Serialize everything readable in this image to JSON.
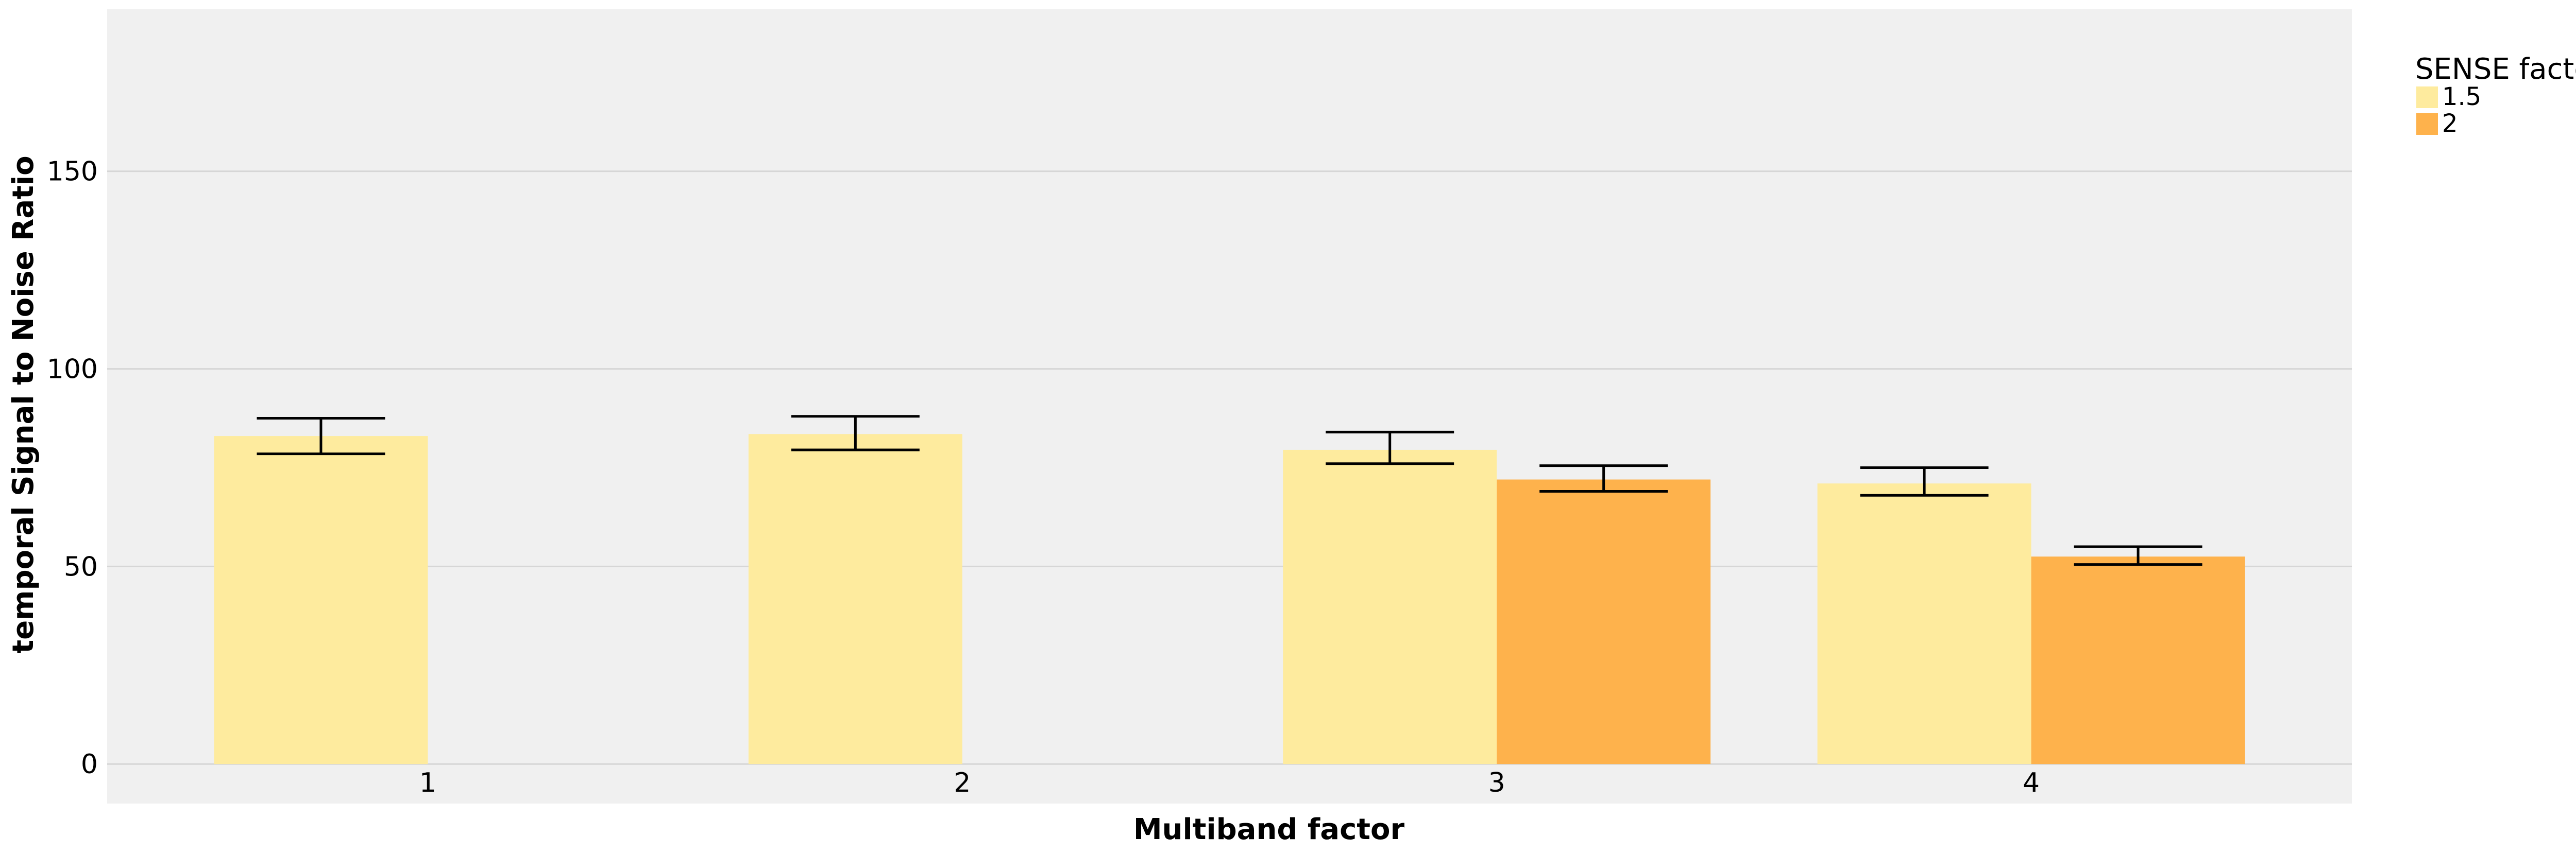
{
  "chart_data": {
    "type": "bar",
    "title": "",
    "xlabel": "Multiband factor",
    "ylabel": "temporal Signal to Noise Ratio",
    "categories": [
      "1",
      "2",
      "3",
      "4"
    ],
    "ylim": [
      -10,
      191
    ],
    "yticks": [
      0,
      50,
      100,
      150
    ],
    "grid": true,
    "legend": {
      "title": "SENSE factor",
      "position": "top-right outside"
    },
    "series": [
      {
        "name": "1.5",
        "color": "#FEEB9E",
        "values": [
          83,
          83.5,
          79.5,
          71
        ],
        "err_low": [
          78.5,
          79.5,
          76,
          68
        ],
        "err_high": [
          87.5,
          88,
          84,
          75
        ]
      },
      {
        "name": "2",
        "color": "#FEB24C",
        "values": [
          null,
          null,
          72,
          52.5
        ],
        "err_low": [
          null,
          null,
          69,
          50.5
        ],
        "err_high": [
          null,
          null,
          75.5,
          55
        ]
      }
    ]
  }
}
